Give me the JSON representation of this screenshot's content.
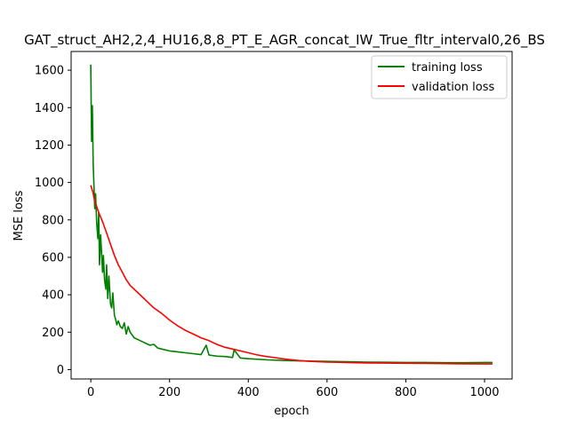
{
  "chart_data": {
    "type": "line",
    "title": "GAT_struct_AH2,2,4_HU16,8,8_PT_E_AGR_concat_IW_True_fltr_interval0,26_BS",
    "xlabel": "epoch",
    "ylabel": "MSE loss",
    "xlim": [
      -50,
      1070
    ],
    "ylim": [
      -50,
      1700
    ],
    "xticks": [
      0,
      200,
      400,
      600,
      800,
      1000
    ],
    "yticks": [
      0,
      200,
      400,
      600,
      800,
      1000,
      1200,
      1400,
      1600
    ],
    "grid": false,
    "legend_position": "top-right",
    "series": [
      {
        "name": "training loss",
        "color": "#008000",
        "x": [
          0,
          2,
          4,
          6,
          8,
          10,
          12,
          15,
          18,
          20,
          22,
          25,
          28,
          30,
          32,
          35,
          38,
          40,
          43,
          46,
          50,
          53,
          56,
          60,
          63,
          66,
          70,
          75,
          80,
          85,
          90,
          95,
          100,
          105,
          110,
          120,
          130,
          140,
          150,
          160,
          170,
          180,
          200,
          220,
          240,
          260,
          280,
          293,
          300,
          320,
          340,
          360,
          364,
          380,
          400,
          450,
          500,
          550,
          600,
          650,
          700,
          750,
          800,
          850,
          900,
          950,
          1000,
          1020
        ],
        "y": [
          1630,
          1220,
          1410,
          1100,
          980,
          860,
          940,
          780,
          700,
          840,
          560,
          720,
          600,
          520,
          610,
          480,
          430,
          560,
          380,
          500,
          350,
          330,
          410,
          290,
          270,
          240,
          260,
          230,
          220,
          250,
          190,
          230,
          200,
          185,
          170,
          160,
          150,
          140,
          130,
          135,
          115,
          110,
          100,
          95,
          90,
          85,
          80,
          130,
          78,
          72,
          70,
          65,
          105,
          62,
          58,
          52,
          48,
          46,
          44,
          42,
          40,
          39,
          38,
          38,
          37,
          37,
          38,
          38
        ]
      },
      {
        "name": "validation loss",
        "color": "#ff0000",
        "x": [
          0,
          5,
          10,
          20,
          30,
          40,
          50,
          60,
          70,
          80,
          90,
          100,
          120,
          140,
          160,
          180,
          200,
          220,
          240,
          260,
          280,
          300,
          320,
          340,
          360,
          380,
          400,
          420,
          440,
          460,
          480,
          500,
          530,
          560,
          600,
          650,
          700,
          750,
          800,
          850,
          900,
          950,
          1000,
          1020
        ],
        "y": [
          985,
          950,
          900,
          840,
          790,
          730,
          670,
          610,
          560,
          520,
          480,
          450,
          410,
          370,
          330,
          300,
          265,
          235,
          210,
          190,
          170,
          155,
          135,
          120,
          110,
          100,
          90,
          80,
          72,
          66,
          60,
          55,
          48,
          44,
          40,
          38,
          36,
          35,
          34,
          33,
          32,
          31,
          30,
          30
        ]
      }
    ]
  }
}
